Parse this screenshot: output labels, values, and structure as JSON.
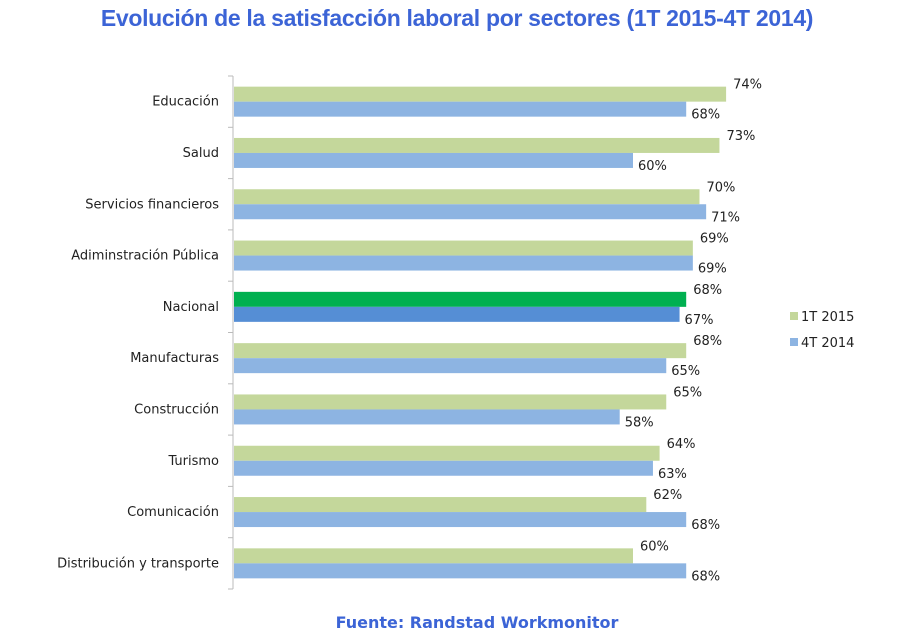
{
  "chart_data": {
    "type": "bar",
    "orientation": "horizontal",
    "title": "Evolución de la satisfacción laboral por sectores (1T 2015-4T 2014)",
    "source": "Fuente: Randstad Workmonitor",
    "categories": [
      "Educación",
      "Salud",
      "Servicios financieros",
      "Adiminstración Pública",
      "Nacional",
      "Manufacturas",
      "Construcción",
      "Turismo",
      "Comunicación",
      "Distribución y transporte"
    ],
    "series": [
      {
        "name": "1T 2015",
        "color": "#c4d79b",
        "values": [
          74,
          73,
          70,
          69,
          68,
          68,
          65,
          64,
          62,
          60
        ]
      },
      {
        "name": "4T 2014",
        "color": "#8db4e2",
        "values": [
          68,
          60,
          71,
          69,
          67,
          65,
          58,
          63,
          68,
          68
        ]
      }
    ],
    "highlight": {
      "category": "Nacional",
      "colors": [
        "#00b050",
        "#558ed5"
      ]
    },
    "value_suffix": "%",
    "xlim": [
      0,
      100
    ],
    "grid": false,
    "x_axis_visible": false,
    "legend_position": "right",
    "title_color": "#3c64d6"
  }
}
